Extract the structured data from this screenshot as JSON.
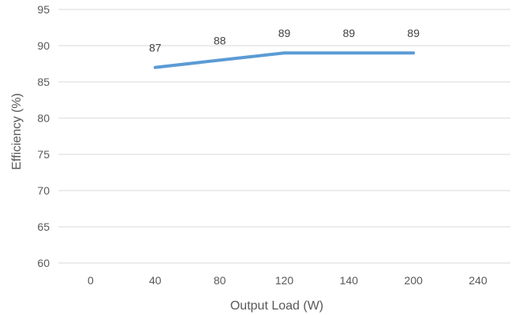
{
  "chart_data": {
    "type": "line",
    "categories": [
      "0",
      "40",
      "80",
      "120",
      "140",
      "200",
      "240"
    ],
    "series": [
      {
        "values": [
          null,
          87,
          88,
          89,
          89,
          89,
          null
        ],
        "data_labels": [
          "",
          "87",
          "88",
          "89",
          "89",
          "89",
          ""
        ]
      }
    ],
    "xlabel": "Output Load (W)",
    "ylabel": "Efficiency (%)",
    "ylim": [
      60,
      95
    ],
    "yticks": [
      "60",
      "65",
      "70",
      "75",
      "80",
      "85",
      "90",
      "95"
    ],
    "grid": true,
    "legend": "none",
    "colors": {
      "series": "#5b9bd5",
      "grid": "#d9d9d9",
      "text": "#595959"
    }
  }
}
